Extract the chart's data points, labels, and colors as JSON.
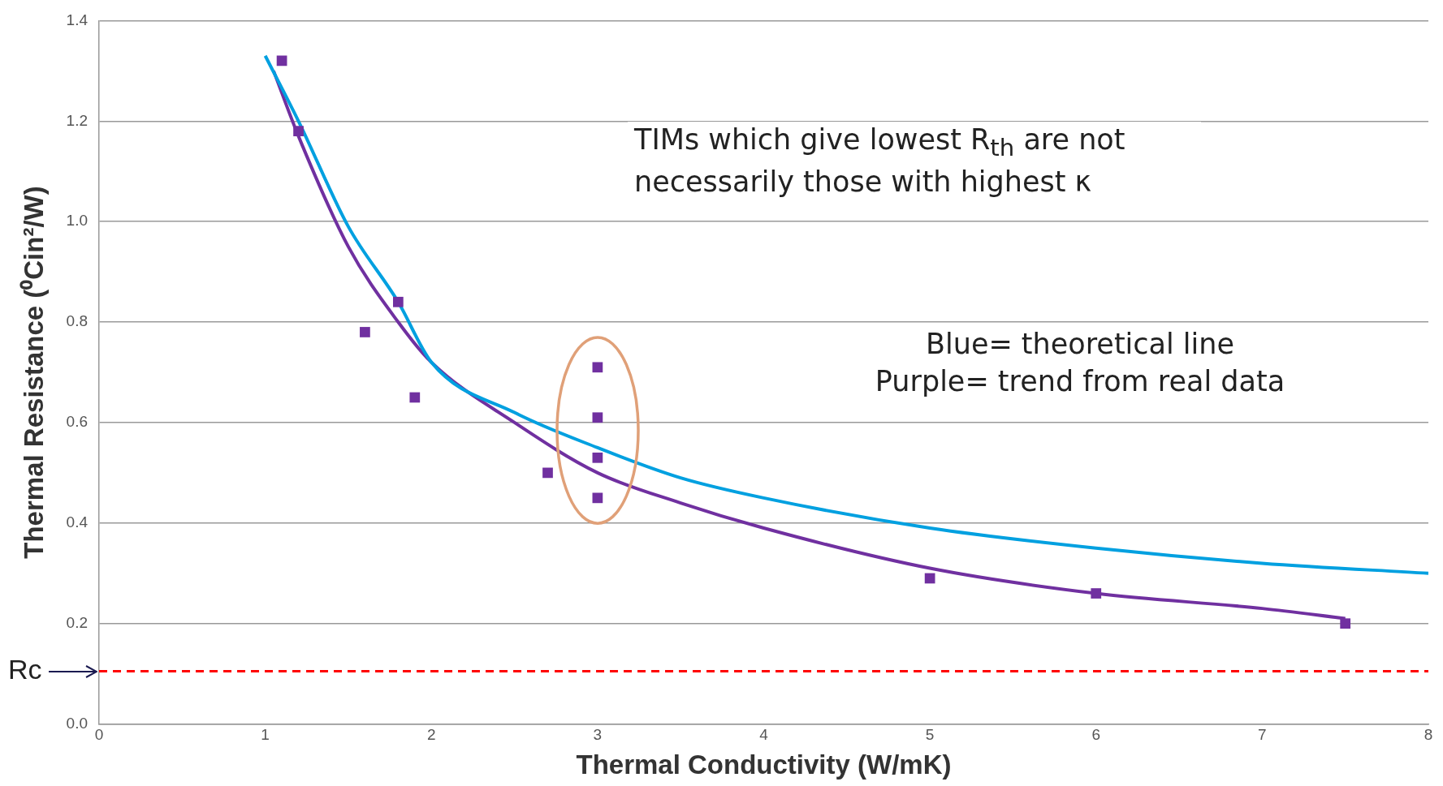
{
  "chart_data": {
    "type": "scatter",
    "xlabel": "Thermal Conductivity (W/mK)",
    "ylabel": "Thermal Resistance (⁰Cin²/W)",
    "xlim": [
      0,
      8
    ],
    "xticks": [
      0,
      1,
      2,
      3,
      4,
      5,
      6,
      7,
      8
    ],
    "ylim": [
      0,
      1.4
    ],
    "yticks": [
      {
        "value": 0,
        "label": "0.0"
      },
      {
        "value": 0.2,
        "label": "0.2"
      },
      {
        "value": 0.4,
        "label": "0.4"
      },
      {
        "value": 0.6,
        "label": "0.6"
      },
      {
        "value": 0.8,
        "label": "0.8"
      },
      {
        "value": 1,
        "label": "1.0"
      },
      {
        "value": 1.2,
        "label": "1.2"
      },
      {
        "value": 1.4,
        "label": "1.4"
      }
    ],
    "grid": "y",
    "legend": false,
    "series": [
      {
        "marker": "square",
        "color": "#7030a0",
        "x": [
          1.1,
          1.2,
          1.8,
          1.6,
          1.9,
          2.7,
          3,
          3,
          3,
          3,
          5,
          6,
          7.5
        ],
        "values": [
          1.32,
          1.18,
          0.84,
          0.78,
          0.65,
          0.5,
          0.71,
          0.61,
          0.53,
          0.45,
          0.29,
          0.26,
          0.2
        ]
      },
      {
        "type": "line",
        "marker": "none",
        "color": "#00a0e0",
        "x": [
          1,
          1.2,
          1.5,
          1.8,
          2,
          2.5,
          3,
          3.5,
          4,
          5,
          6,
          7,
          8
        ],
        "values": [
          1.33,
          1.2,
          0.99,
          0.84,
          0.72,
          0.62,
          0.55,
          0.49,
          0.45,
          0.39,
          0.35,
          0.32,
          0.3
        ]
      },
      {
        "type": "line",
        "marker": "none",
        "color": "#7030a0",
        "x": [
          1.05,
          1.2,
          1.5,
          1.8,
          2,
          2.5,
          3,
          3.5,
          4,
          5,
          6,
          7,
          7.5
        ],
        "values": [
          1.3,
          1.17,
          0.95,
          0.8,
          0.72,
          0.6,
          0.5,
          0.44,
          0.39,
          0.31,
          0.26,
          0.23,
          0.21
        ]
      }
    ],
    "ref_lines": [
      {
        "axis": "y",
        "value": 0.105,
        "label": "Rc",
        "color": "#ff0000",
        "line_style": "dashed"
      }
    ],
    "annotations": [
      "TIMs which give lowest R$_{th}$ are not necessarily those with highest κ",
      "Blue= theoretical line\nPurple= trend from real data"
    ]
  }
}
